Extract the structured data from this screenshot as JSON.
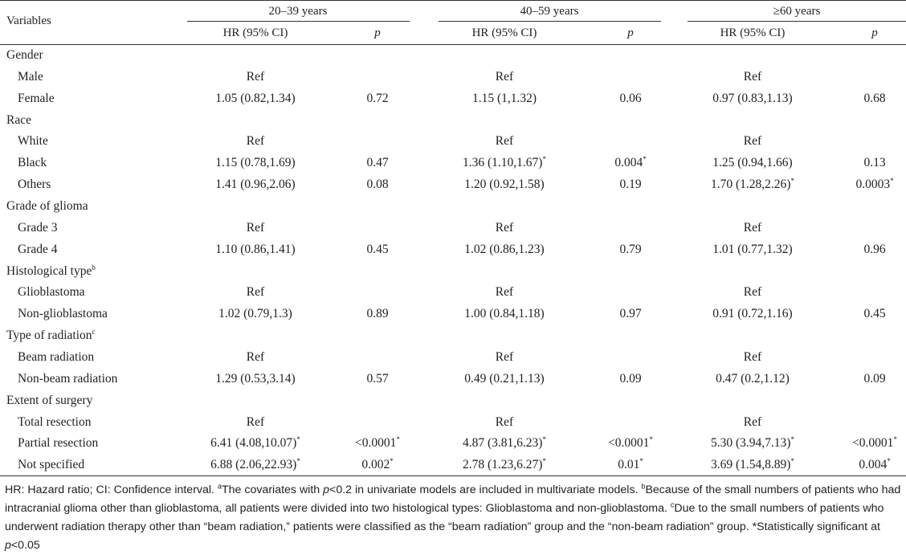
{
  "table": {
    "header": {
      "variables": "Variables",
      "groups": [
        "20–39 years",
        "40–59 years",
        "≥60 years"
      ],
      "hr_label": "HR (95% CI)",
      "p_label": "p"
    },
    "rows": [
      {
        "label": "Gender",
        "sub": false,
        "cells": [
          "",
          "",
          "",
          "",
          "",
          ""
        ]
      },
      {
        "label": "Male",
        "sub": true,
        "cells": [
          "Ref",
          "",
          "Ref",
          "",
          "Ref",
          ""
        ]
      },
      {
        "label": "Female",
        "sub": true,
        "cells": [
          "1.05 (0.82,1.34)",
          "0.72",
          "1.15 (1,1.32)",
          "0.06",
          "0.97 (0.83,1.13)",
          "0.68"
        ]
      },
      {
        "label": "Race",
        "sub": false,
        "cells": [
          "",
          "",
          "",
          "",
          "",
          ""
        ]
      },
      {
        "label": "White",
        "sub": true,
        "cells": [
          "Ref",
          "",
          "Ref",
          "",
          "Ref",
          ""
        ]
      },
      {
        "label": "Black",
        "sub": true,
        "cells": [
          "1.15 (0.78,1.69)",
          "0.47",
          "1.36 (1.10,1.67)*",
          "0.004*",
          "1.25 (0.94,1.66)",
          "0.13"
        ]
      },
      {
        "label": "Others",
        "sub": true,
        "cells": [
          "1.41 (0.96,2.06)",
          "0.08",
          "1.20 (0.92,1.58)",
          "0.19",
          "1.70 (1.28,2.26)*",
          "0.0003*"
        ]
      },
      {
        "label": "Grade of glioma",
        "sub": false,
        "cells": [
          "",
          "",
          "",
          "",
          "",
          ""
        ]
      },
      {
        "label": "Grade 3",
        "sub": true,
        "cells": [
          "Ref",
          "",
          "Ref",
          "",
          "Ref",
          ""
        ]
      },
      {
        "label": "Grade 4",
        "sub": true,
        "cells": [
          "1.10 (0.86,1.41)",
          "0.45",
          "1.02 (0.86,1.23)",
          "0.79",
          "1.01 (0.77,1.32)",
          "0.96"
        ]
      },
      {
        "label": "Histological type",
        "label_sup": "b",
        "sub": false,
        "cells": [
          "",
          "",
          "",
          "",
          "",
          ""
        ]
      },
      {
        "label": "Glioblastoma",
        "sub": true,
        "cells": [
          "Ref",
          "",
          "Ref",
          "",
          "Ref",
          ""
        ]
      },
      {
        "label": "Non-glioblastoma",
        "sub": true,
        "cells": [
          "1.02 (0.79,1.3)",
          "0.89",
          "1.00 (0.84,1.18)",
          "0.97",
          "0.91 (0.72,1.16)",
          "0.45"
        ]
      },
      {
        "label": "Type of radiation",
        "label_sup": "c",
        "sub": false,
        "cells": [
          "",
          "",
          "",
          "",
          "",
          ""
        ]
      },
      {
        "label": "Beam radiation",
        "sub": true,
        "cells": [
          "Ref",
          "",
          "Ref",
          "",
          "Ref",
          ""
        ]
      },
      {
        "label": "Non-beam radiation",
        "sub": true,
        "cells": [
          "1.29 (0.53,3.14)",
          "0.57",
          "0.49 (0.21,1.13)",
          "0.09",
          "0.47 (0.2,1.12)",
          "0.09"
        ]
      },
      {
        "label": "Extent of surgery",
        "sub": false,
        "cells": [
          "",
          "",
          "",
          "",
          "",
          ""
        ]
      },
      {
        "label": "Total resection",
        "sub": true,
        "cells": [
          "Ref",
          "",
          "Ref",
          "",
          "Ref",
          ""
        ]
      },
      {
        "label": "Partial resection",
        "sub": true,
        "cells": [
          "6.41 (4.08,10.07)*",
          "<0.0001*",
          "4.87 (3.81,6.23)*",
          "<0.0001*",
          "5.30 (3.94,7.13)*",
          "<0.0001*"
        ]
      },
      {
        "label": "Not specified",
        "sub": true,
        "cells": [
          "6.88 (2.06,22.93)*",
          "0.002*",
          "2.78 (1.23,6.27)*",
          "0.01*",
          "3.69 (1.54,8.89)*",
          "0.004*"
        ]
      }
    ]
  },
  "footnote": {
    "part1": "HR: Hazard ratio; CI: Confidence interval. ",
    "sup_a": "a",
    "part2": "The covariates with ",
    "p_italic": "p",
    "part3": "<0.2 in univariate models are included in multivariate models. ",
    "sup_b": "b",
    "part4": "Because of the small numbers of patients who had intracranial glioma other than glioblastoma, all patients were divided into two histological types: Glioblastoma and non-glioblastoma. ",
    "sup_c": "c",
    "part5": "Due to the small numbers of patients who underwent radiation therapy other than “beam radiation,” patients were classified as the “beam radiation” group and the “non-beam radiation” group. *Statistically significant at ",
    "p_italic2": "p",
    "part6": "<0.05"
  }
}
